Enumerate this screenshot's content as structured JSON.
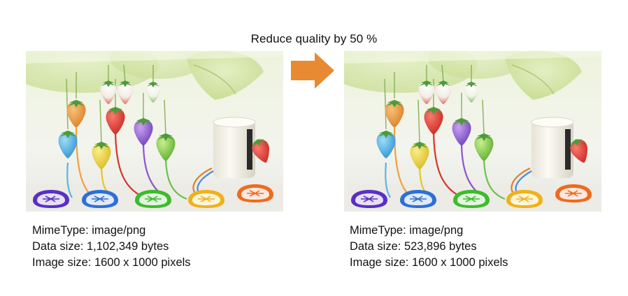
{
  "header": {
    "title": "Reduce quality by 50 %"
  },
  "arrow": {
    "icon": "right-arrow-icon",
    "color": "#E88A32"
  },
  "original": {
    "image": "strawberry-illustration",
    "mime_label": "MimeType: image/png",
    "data_size_label": "Data size: 1,102,349 bytes",
    "image_size_label": "Image size: 1600 x 1000 pixels"
  },
  "reduced": {
    "image": "strawberry-illustration",
    "mime_label": "MimeType: image/png",
    "data_size_label": "Data size: 523,896 bytes",
    "image_size_label": "Image size: 1600 x 1000 pixels"
  }
}
